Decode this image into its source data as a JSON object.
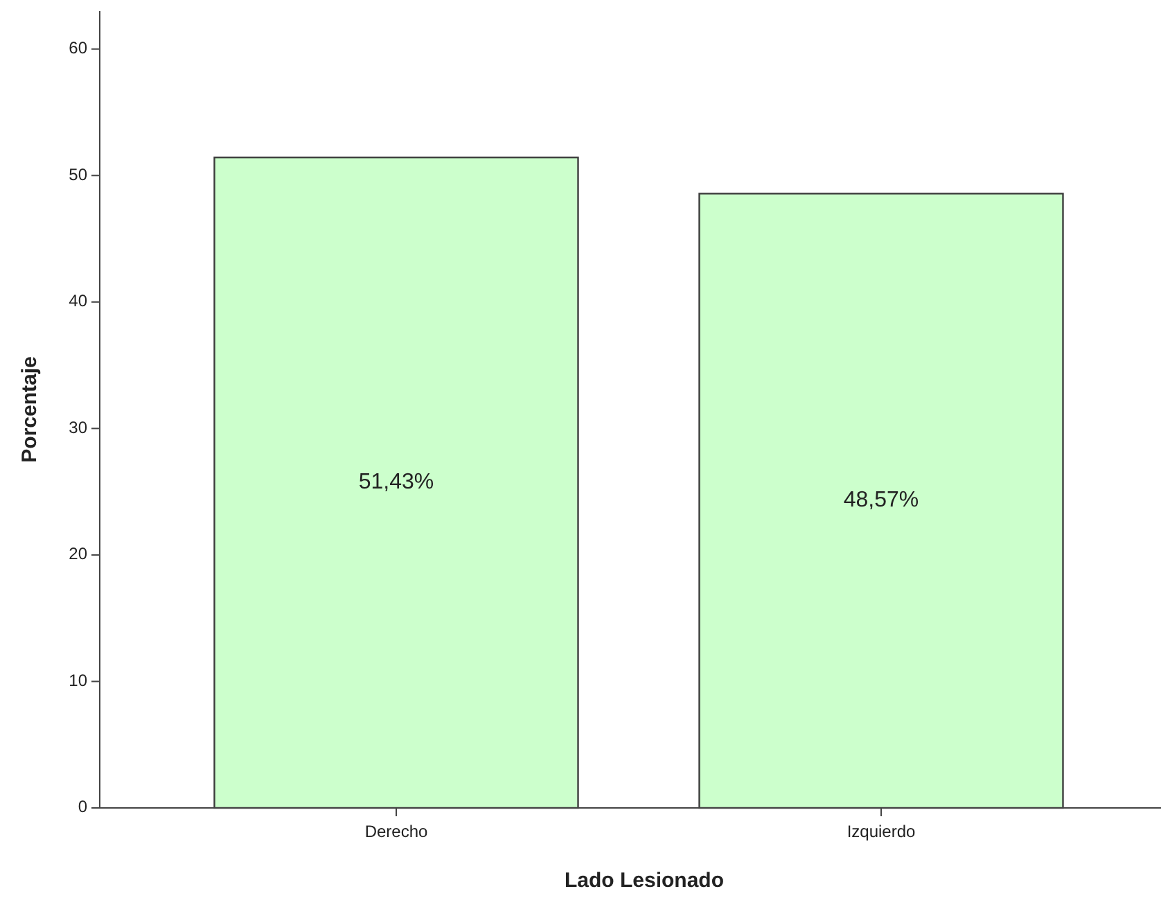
{
  "chart_data": {
    "type": "bar",
    "xlabel": "Lado Lesionado",
    "ylabel": "Porcentaje",
    "categories": [
      "Derecho",
      "Izquierdo"
    ],
    "values": [
      51.43,
      48.57
    ],
    "value_labels": [
      "51,43%",
      "48,57%"
    ],
    "color": "#ccffcc",
    "ylim": [
      0,
      63
    ],
    "yticks": [
      0,
      10,
      20,
      30,
      40,
      50,
      60
    ]
  }
}
